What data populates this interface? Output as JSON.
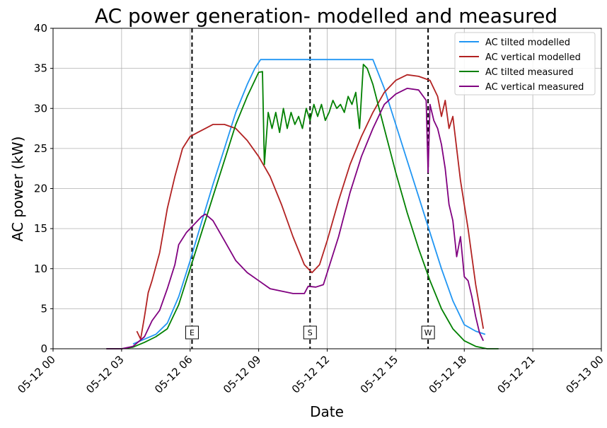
{
  "chart_data": {
    "type": "line",
    "title": "AC power generation- modelled and measured",
    "xlabel": "Date",
    "ylabel": "AC power (kW)",
    "xlim": [
      "05-12 00:00",
      "05-13 00:00"
    ],
    "ylim": [
      0,
      40
    ],
    "grid": true,
    "legend_position": "top-right",
    "x_ticks": [
      "05-12 00",
      "05-12 03",
      "05-12 06",
      "05-12 09",
      "05-12 12",
      "05-12 15",
      "05-12 18",
      "05-12 21",
      "05-13 00"
    ],
    "y_ticks": [
      0,
      5,
      10,
      15,
      20,
      25,
      30,
      35,
      40
    ],
    "vlines": [
      {
        "label": "E",
        "x": "05-12 06:05"
      },
      {
        "label": "S",
        "x": "05-12 11:15"
      },
      {
        "label": "W",
        "x": "05-12 16:25"
      }
    ],
    "series": [
      {
        "name": "AC tilted modelled",
        "color": "#2196f3",
        "x": [
          "05-12 03:30",
          "05-12 04:00",
          "05-12 04:30",
          "05-12 05:00",
          "05-12 05:30",
          "05-12 06:00",
          "05-12 06:30",
          "05-12 07:00",
          "05-12 07:30",
          "05-12 08:00",
          "05-12 08:30",
          "05-12 08:50",
          "05-12 09:05",
          "05-12 10:00",
          "05-12 11:00",
          "05-12 12:00",
          "05-12 13:00",
          "05-12 14:00",
          "05-12 14:30",
          "05-12 15:00",
          "05-12 15:30",
          "05-12 16:00",
          "05-12 16:30",
          "05-12 17:00",
          "05-12 17:30",
          "05-12 18:00",
          "05-12 18:30",
          "05-12 18:55"
        ],
        "y": [
          0.6,
          1.2,
          1.8,
          3.2,
          6.5,
          11.0,
          15.8,
          20.5,
          25.0,
          29.5,
          33.0,
          35.0,
          36.1,
          36.1,
          36.1,
          36.1,
          36.1,
          36.1,
          32.5,
          28.0,
          23.5,
          19.0,
          14.5,
          10.0,
          6.0,
          3.0,
          2.2,
          1.8
        ]
      },
      {
        "name": "AC vertical modelled",
        "color": "#b22222",
        "x": [
          "05-12 03:40",
          "05-12 03:50",
          "05-12 04:00",
          "05-12 04:10",
          "05-12 04:20",
          "05-12 04:40",
          "05-12 05:00",
          "05-12 05:20",
          "05-12 05:40",
          "05-12 06:00",
          "05-12 06:20",
          "05-12 06:40",
          "05-12 07:00",
          "05-12 07:30",
          "05-12 08:00",
          "05-12 08:30",
          "05-12 09:00",
          "05-12 09:30",
          "05-12 10:00",
          "05-12 10:30",
          "05-12 11:00",
          "05-12 11:20",
          "05-12 11:40",
          "05-12 12:00",
          "05-12 12:30",
          "05-12 13:00",
          "05-12 13:30",
          "05-12 14:00",
          "05-12 14:30",
          "05-12 15:00",
          "05-12 15:30",
          "05-12 16:00",
          "05-12 16:30",
          "05-12 16:50",
          "05-12 17:00",
          "05-12 17:10",
          "05-12 17:20",
          "05-12 17:30",
          "05-12 17:50",
          "05-12 18:10",
          "05-12 18:30",
          "05-12 18:50"
        ],
        "y": [
          2.2,
          1.2,
          4.0,
          7.0,
          8.5,
          12.0,
          17.5,
          21.5,
          25.0,
          26.5,
          27.0,
          27.5,
          28.0,
          28.0,
          27.5,
          26.0,
          24.0,
          21.5,
          18.0,
          14.0,
          10.5,
          9.5,
          10.5,
          13.5,
          18.5,
          23.0,
          26.5,
          29.5,
          32.0,
          33.5,
          34.2,
          34.0,
          33.5,
          31.5,
          29.0,
          31.0,
          27.5,
          29.0,
          21.0,
          15.0,
          8.0,
          2.5
        ]
      },
      {
        "name": "AC tilted measured",
        "color": "#008000",
        "x": [
          "05-12 02:20",
          "05-12 03:00",
          "05-12 03:30",
          "05-12 04:00",
          "05-12 04:30",
          "05-12 05:00",
          "05-12 05:30",
          "05-12 06:00",
          "05-12 06:30",
          "05-12 07:00",
          "05-12 07:30",
          "05-12 08:00",
          "05-12 08:30",
          "05-12 09:00",
          "05-12 09:10",
          "05-12 09:15",
          "05-12 09:25",
          "05-12 09:35",
          "05-12 09:45",
          "05-12 09:55",
          "05-12 10:05",
          "05-12 10:15",
          "05-12 10:25",
          "05-12 10:35",
          "05-12 10:45",
          "05-12 10:55",
          "05-12 11:05",
          "05-12 11:15",
          "05-12 11:25",
          "05-12 11:35",
          "05-12 11:45",
          "05-12 11:55",
          "05-12 12:05",
          "05-12 12:15",
          "05-12 12:25",
          "05-12 12:35",
          "05-12 12:45",
          "05-12 12:55",
          "05-12 13:05",
          "05-12 13:15",
          "05-12 13:25",
          "05-12 13:35",
          "05-12 13:45",
          "05-12 14:00",
          "05-12 14:30",
          "05-12 15:00",
          "05-12 15:30",
          "05-12 16:00",
          "05-12 16:30",
          "05-12 17:00",
          "05-12 17:30",
          "05-12 18:00",
          "05-12 18:30",
          "05-12 19:00",
          "05-12 19:30"
        ],
        "y": [
          0.0,
          0.0,
          0.2,
          0.8,
          1.5,
          2.5,
          5.5,
          10.0,
          14.5,
          19.0,
          23.5,
          28.0,
          31.5,
          34.5,
          34.6,
          23.0,
          29.5,
          27.5,
          29.5,
          27.0,
          30.0,
          27.5,
          29.5,
          28.0,
          29.0,
          27.5,
          30.0,
          28.5,
          30.5,
          29.0,
          30.5,
          28.5,
          29.5,
          31.0,
          30.0,
          30.5,
          29.5,
          31.5,
          30.5,
          32.0,
          27.5,
          35.5,
          35.0,
          33.0,
          27.5,
          22.0,
          17.0,
          12.5,
          8.5,
          5.0,
          2.5,
          1.0,
          0.3,
          0.0,
          0.0
        ]
      },
      {
        "name": "AC vertical measured",
        "color": "#800080",
        "x": [
          "05-12 02:20",
          "05-12 03:00",
          "05-12 03:30",
          "05-12 04:00",
          "05-12 04:20",
          "05-12 04:40",
          "05-12 05:00",
          "05-12 05:20",
          "05-12 05:30",
          "05-12 05:50",
          "05-12 06:10",
          "05-12 06:30",
          "05-12 06:40",
          "05-12 07:00",
          "05-12 07:30",
          "05-12 08:00",
          "05-12 08:30",
          "05-12 09:00",
          "05-12 09:30",
          "05-12 10:00",
          "05-12 10:30",
          "05-12 11:00",
          "05-12 11:10",
          "05-12 11:30",
          "05-12 11:50",
          "05-12 12:00",
          "05-12 12:30",
          "05-12 13:00",
          "05-12 13:30",
          "05-12 14:00",
          "05-12 14:30",
          "05-12 15:00",
          "05-12 15:30",
          "05-12 16:00",
          "05-12 16:20",
          "05-12 16:25",
          "05-12 16:30",
          "05-12 16:40",
          "05-12 16:50",
          "05-12 17:00",
          "05-12 17:10",
          "05-12 17:20",
          "05-12 17:30",
          "05-12 17:40",
          "05-12 17:50",
          "05-12 18:00",
          "05-12 18:10",
          "05-12 18:20",
          "05-12 18:30",
          "05-12 18:40",
          "05-12 18:50"
        ],
        "y": [
          0.0,
          0.0,
          0.3,
          1.5,
          3.5,
          4.8,
          7.5,
          10.5,
          13.0,
          14.5,
          15.5,
          16.5,
          16.8,
          16.0,
          13.5,
          11.0,
          9.5,
          8.5,
          7.5,
          7.2,
          6.9,
          6.9,
          7.8,
          7.7,
          8.0,
          9.5,
          14.0,
          19.5,
          24.0,
          27.5,
          30.5,
          31.8,
          32.5,
          32.3,
          31.0,
          22.0,
          30.5,
          28.5,
          27.5,
          25.5,
          22.5,
          18.0,
          16.0,
          11.5,
          14.0,
          9.0,
          8.5,
          6.5,
          4.0,
          2.0,
          1.0
        ]
      }
    ]
  }
}
